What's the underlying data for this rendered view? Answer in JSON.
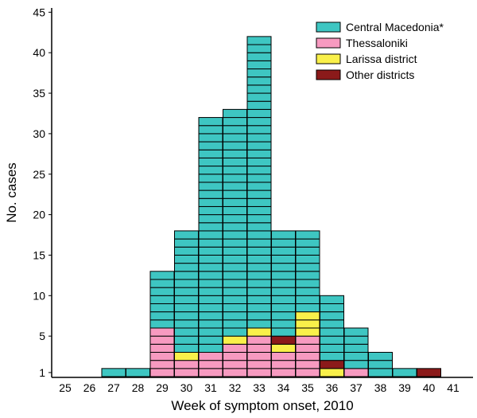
{
  "chart_data": {
    "type": "bar",
    "stacked": true,
    "unit_boxes": true,
    "xlabel": "Week of symptom onset, 2010",
    "ylabel": "No. cases",
    "categories": [
      "25",
      "26",
      "27",
      "28",
      "29",
      "30",
      "31",
      "32",
      "33",
      "34",
      "35",
      "36",
      "37",
      "38",
      "39",
      "40",
      "41"
    ],
    "y_ticks": [
      1,
      5,
      10,
      15,
      20,
      25,
      30,
      35,
      40,
      45
    ],
    "ylim": [
      0,
      45
    ],
    "grid": false,
    "legend_position": "top-right",
    "series": [
      {
        "name": "Thessaloniki",
        "color": "#f79ac0",
        "values": [
          0,
          0,
          0,
          0,
          6,
          2,
          3,
          4,
          5,
          3,
          5,
          0,
          1,
          0,
          0,
          0,
          0
        ]
      },
      {
        "name": "Larissa district",
        "color": "#f9f04a",
        "values": [
          0,
          0,
          0,
          0,
          0,
          1,
          0,
          1,
          1,
          1,
          3,
          1,
          0,
          0,
          0,
          0,
          0
        ]
      },
      {
        "name": "Other districts",
        "color": "#8b1a1a",
        "values": [
          0,
          0,
          0,
          0,
          0,
          0,
          0,
          0,
          0,
          1,
          0,
          1,
          0,
          0,
          0,
          1,
          0
        ]
      },
      {
        "name": "Central Macedonia*",
        "color": "#3ec6c2",
        "values": [
          0,
          0,
          1,
          1,
          7,
          15,
          29,
          28,
          36,
          13,
          10,
          8,
          5,
          3,
          1,
          0,
          0
        ]
      }
    ],
    "legend_order": [
      "Central Macedonia*",
      "Thessaloniki",
      "Larissa district",
      "Other districts"
    ]
  }
}
